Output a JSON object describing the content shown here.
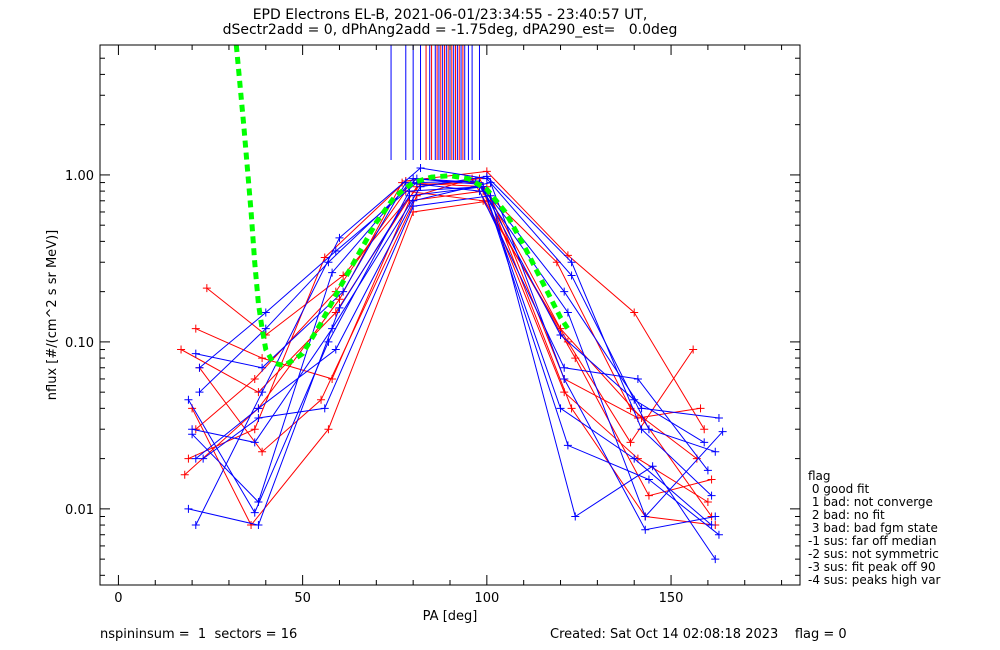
{
  "title_line1": "EPD Electrons EL-B, 2021-06-01/23:34:55 - 23:40:57 UT,",
  "title_line2": "dSectr2add = 0, dPhAng2add = -1.75deg, dPA290_est=   0.0deg",
  "footer_left": "nspininsum =  1  sectors = 16",
  "footer_right": "Created: Sat Oct 14 02:08:18 2023    flag = 0",
  "legend": {
    "title": "flag",
    "items": [
      " 0 good fit",
      " 1 bad: not converge",
      " 2 bad: no fit",
      " 3 bad: bad fgm state",
      "-1 sus: far off median",
      "-2 sus: not symmetric",
      "-3 sus: fit peak off 90",
      "-4 sus: peaks high var"
    ]
  },
  "colors": {
    "series_red": "#ff0000",
    "series_blue": "#0000ff",
    "fit": "#00ff00",
    "axes": "#000000"
  },
  "chart_data": {
    "type": "line",
    "title": "EPD Electrons EL-B, 2021-06-01/23:34:55 - 23:40:57 UT,",
    "subtitle": "dSectr2add = 0, dPhAng2add = -1.75deg, dPA290_est=   0.0deg",
    "xlabel": "PA [deg]",
    "ylabel": "nflux [#/(cm^2 s sr MeV)]",
    "xlim": [
      -5,
      185
    ],
    "ylim": [
      0.0035,
      6.0
    ],
    "yscale": "log",
    "x_ticks": [
      0,
      50,
      100,
      150
    ],
    "y_ticks": [
      0.01,
      0.1,
      1.0
    ],
    "y_tick_labels": [
      "0.01",
      "0.10",
      "1.00"
    ],
    "grid": false,
    "legend_position": "outside-right-bottom",
    "series": [
      {
        "color": "red",
        "x": [
          17,
          38,
          59,
          81,
          98,
          120,
          142,
          161
        ],
        "y": [
          0.09,
          0.05,
          0.15,
          0.85,
          0.95,
          0.12,
          0.035,
          0.009
        ]
      },
      {
        "color": "red",
        "x": [
          19,
          37,
          56,
          78,
          100,
          122,
          140,
          159
        ],
        "y": [
          0.02,
          0.03,
          0.32,
          0.92,
          1.05,
          0.33,
          0.15,
          0.03
        ]
      },
      {
        "color": "red",
        "x": [
          21,
          39,
          58,
          79,
          99,
          121,
          141,
          160
        ],
        "y": [
          0.12,
          0.08,
          0.06,
          0.7,
          0.8,
          0.05,
          0.02,
          0.011
        ]
      },
      {
        "color": "red",
        "x": [
          24,
          40,
          61,
          82,
          97,
          119,
          139,
          157
        ],
        "y": [
          0.21,
          0.11,
          0.25,
          0.88,
          0.9,
          0.3,
          0.04,
          0.02
        ]
      },
      {
        "color": "red",
        "x": [
          20,
          36,
          57,
          80,
          101,
          123,
          143,
          162
        ],
        "y": [
          0.04,
          0.008,
          0.03,
          0.6,
          0.7,
          0.04,
          0.009,
          0.008
        ]
      },
      {
        "color": "red",
        "x": [
          18,
          38,
          60,
          77,
          100,
          121,
          141,
          158
        ],
        "y": [
          0.016,
          0.04,
          0.18,
          0.9,
          0.85,
          0.06,
          0.035,
          0.04
        ]
      },
      {
        "color": "red",
        "x": [
          22,
          39,
          55,
          81,
          96,
          124,
          144,
          161
        ],
        "y": [
          0.07,
          0.022,
          0.045,
          0.75,
          0.95,
          0.08,
          0.012,
          0.015
        ]
      },
      {
        "color": "red",
        "x": [
          21,
          37,
          59,
          78,
          99,
          122,
          139,
          156
        ],
        "y": [
          0.03,
          0.06,
          0.2,
          0.8,
          0.7,
          0.1,
          0.025,
          0.09
        ]
      },
      {
        "color": "blue",
        "x": [
          20,
          38,
          58,
          80,
          98,
          121,
          142,
          163
        ],
        "y": [
          0.028,
          0.011,
          0.26,
          0.95,
          0.88,
          0.2,
          0.04,
          0.035
        ]
      },
      {
        "color": "blue",
        "x": [
          21,
          39,
          60,
          82,
          100,
          123,
          144,
          162
        ],
        "y": [
          0.008,
          0.05,
          0.42,
          1.1,
          0.95,
          0.25,
          0.03,
          0.022
        ]
      },
      {
        "color": "blue",
        "x": [
          19,
          37,
          57,
          79,
          99,
          120,
          140,
          161
        ],
        "y": [
          0.045,
          0.0095,
          0.1,
          0.8,
          0.85,
          0.04,
          0.02,
          0.008
        ]
      },
      {
        "color": "blue",
        "x": [
          22,
          40,
          59,
          81,
          97,
          122,
          143,
          164
        ],
        "y": [
          0.07,
          0.15,
          0.35,
          0.9,
          0.92,
          0.15,
          0.009,
          0.029
        ]
      },
      {
        "color": "blue",
        "x": [
          23,
          38,
          56,
          80,
          101,
          124,
          145,
          162
        ],
        "y": [
          0.02,
          0.035,
          0.04,
          0.65,
          0.75,
          0.009,
          0.018,
          0.005
        ]
      },
      {
        "color": "blue",
        "x": [
          21,
          39,
          61,
          78,
          98,
          121,
          141,
          160
        ],
        "y": [
          0.085,
          0.07,
          0.2,
          0.9,
          0.8,
          0.07,
          0.06,
          0.017
        ]
      },
      {
        "color": "blue",
        "x": [
          20,
          37,
          58,
          82,
          100,
          123,
          142,
          161
        ],
        "y": [
          0.03,
          0.025,
          0.12,
          0.85,
          0.98,
          0.3,
          0.03,
          0.012
        ]
      },
      {
        "color": "blue",
        "x": [
          19,
          38,
          60,
          79,
          99,
          122,
          144,
          163
        ],
        "y": [
          0.01,
          0.008,
          0.16,
          0.75,
          0.85,
          0.024,
          0.015,
          0.007
        ]
      },
      {
        "color": "blue",
        "x": [
          22,
          40,
          57,
          81,
          98,
          120,
          140,
          159
        ],
        "y": [
          0.05,
          0.12,
          0.3,
          0.95,
          0.9,
          0.11,
          0.045,
          0.025
        ]
      },
      {
        "color": "blue",
        "x": [
          21,
          38,
          59,
          80,
          101,
          121,
          143,
          162
        ],
        "y": [
          0.02,
          0.04,
          0.09,
          0.7,
          0.9,
          0.06,
          0.0075,
          0.009
        ]
      }
    ],
    "fit_curve": {
      "color": "green",
      "style": "dashed",
      "x": [
        32,
        34,
        36,
        37,
        38,
        39,
        40,
        42,
        45,
        50,
        55,
        60,
        65,
        70,
        75,
        80,
        85,
        90,
        95,
        100,
        105,
        110,
        115,
        120,
        122
      ],
      "y": [
        6.0,
        2.0,
        0.6,
        0.3,
        0.17,
        0.12,
        0.09,
        0.075,
        0.072,
        0.085,
        0.13,
        0.21,
        0.33,
        0.52,
        0.74,
        0.9,
        0.97,
        0.99,
        0.95,
        0.82,
        0.6,
        0.38,
        0.23,
        0.14,
        0.12
      ]
    },
    "vertical_marks": {
      "x": [
        74,
        78,
        80,
        82,
        83.5,
        84.5,
        85,
        86,
        86.5,
        87,
        87.5,
        88,
        88.5,
        89,
        89.5,
        90,
        90.5,
        91,
        91.5,
        92,
        92.5,
        93,
        93.5,
        94,
        95,
        96,
        98
      ],
      "color": [
        "blue",
        "blue",
        "blue",
        "blue",
        "red",
        "blue",
        "red",
        "blue",
        "red",
        "blue",
        "red",
        "blue",
        "red",
        "blue",
        "red",
        "blue",
        "red",
        "blue",
        "red",
        "blue",
        "red",
        "blue",
        "red",
        "blue",
        "blue",
        "blue",
        "blue"
      ]
    }
  }
}
